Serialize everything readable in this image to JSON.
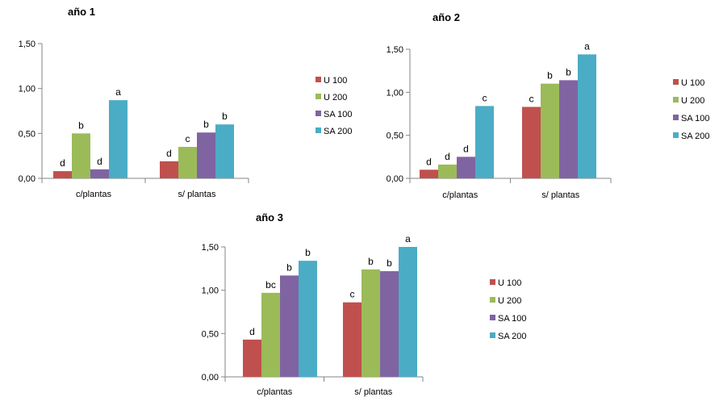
{
  "chart_data": [
    {
      "type": "bar",
      "title": "año 1",
      "categories": [
        "c/plantas",
        "s/ plantas"
      ],
      "ylim": [
        0,
        1.5
      ],
      "yticks": [
        "0,00",
        "0,50",
        "1,00",
        "1,50"
      ],
      "grid": false,
      "legend": "right",
      "series": [
        {
          "name": "U 100",
          "color": "#c0504d",
          "values": [
            0.08,
            0.19
          ],
          "labels": [
            "d",
            "d"
          ]
        },
        {
          "name": "U 200",
          "color": "#9bbb59",
          "values": [
            0.5,
            0.35
          ],
          "labels": [
            "b",
            "c"
          ]
        },
        {
          "name": "SA 100",
          "color": "#8064a2",
          "values": [
            0.1,
            0.51
          ],
          "labels": [
            "d",
            "b"
          ]
        },
        {
          "name": "SA 200",
          "color": "#4bacc6",
          "values": [
            0.87,
            0.6
          ],
          "labels": [
            "a",
            "b"
          ]
        }
      ]
    },
    {
      "type": "bar",
      "title": "año 2",
      "categories": [
        "c/plantas",
        "s/ plantas"
      ],
      "ylim": [
        0,
        1.5
      ],
      "yticks": [
        "0,00",
        "0,50",
        "1,00",
        "1,50"
      ],
      "grid": false,
      "legend": "right",
      "series": [
        {
          "name": "U 100",
          "color": "#c0504d",
          "values": [
            0.1,
            0.83
          ],
          "labels": [
            "d",
            "c"
          ]
        },
        {
          "name": "U 200",
          "color": "#9bbb59",
          "values": [
            0.16,
            1.1
          ],
          "labels": [
            "d",
            "b"
          ]
        },
        {
          "name": "SA 100",
          "color": "#8064a2",
          "values": [
            0.25,
            1.14
          ],
          "labels": [
            "d",
            "b"
          ]
        },
        {
          "name": "SA 200",
          "color": "#4bacc6",
          "values": [
            0.84,
            1.44
          ],
          "labels": [
            "c",
            "a"
          ]
        }
      ]
    },
    {
      "type": "bar",
      "title": "año 3",
      "categories": [
        "c/plantas",
        "s/ plantas"
      ],
      "ylim": [
        0,
        1.5
      ],
      "yticks": [
        "0,00",
        "0,50",
        "1,00",
        "1,50"
      ],
      "grid": false,
      "legend": "right",
      "series": [
        {
          "name": "U 100",
          "color": "#c0504d",
          "values": [
            0.43,
            0.86
          ],
          "labels": [
            "d",
            "c"
          ]
        },
        {
          "name": "U 200",
          "color": "#9bbb59",
          "values": [
            0.97,
            1.24
          ],
          "labels": [
            "bc",
            "b"
          ]
        },
        {
          "name": "SA 100",
          "color": "#8064a2",
          "values": [
            1.17,
            1.22
          ],
          "labels": [
            "b",
            "b"
          ]
        },
        {
          "name": "SA 200",
          "color": "#4bacc6",
          "values": [
            1.34,
            1.5
          ],
          "labels": [
            "b",
            "a"
          ]
        }
      ]
    }
  ]
}
